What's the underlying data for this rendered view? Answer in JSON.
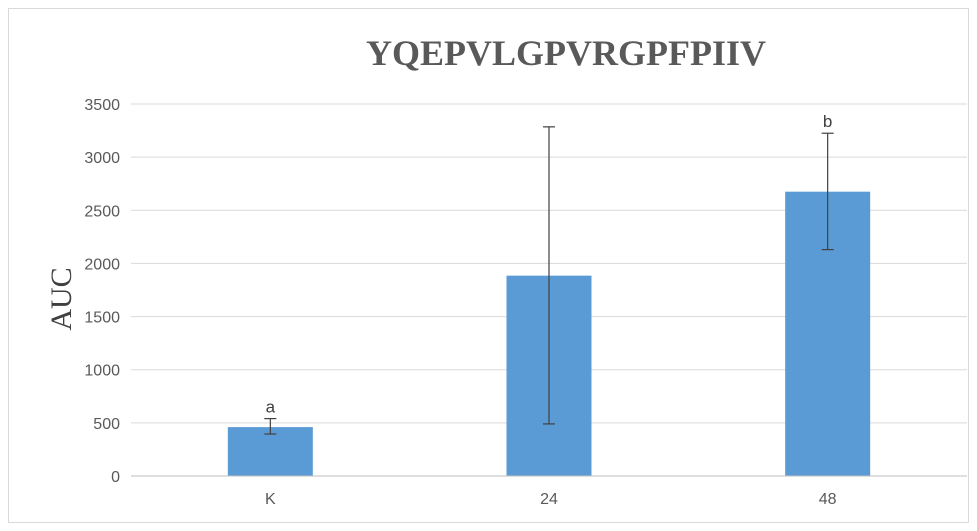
{
  "chart_data": {
    "type": "bar",
    "title": "YQEPVLGPVRGPFPIIV",
    "xlabel": "",
    "ylabel": "AUC",
    "categories": [
      "K",
      "24",
      "48"
    ],
    "values": [
      460,
      1885,
      2675
    ],
    "error_low": [
      395,
      490,
      2130
    ],
    "error_high": [
      540,
      3285,
      3225
    ],
    "annotations": [
      "a",
      "",
      "b"
    ],
    "ylim": [
      0,
      3500
    ],
    "yticks": [
      0,
      500,
      1000,
      1500,
      2000,
      2500,
      3000,
      3500
    ],
    "grid": true,
    "legend": "none",
    "colors": {
      "bar": "#5B9BD5",
      "error_bar": "#404040",
      "grid": "#d9d9d9",
      "axis": "#bfbfbf"
    }
  }
}
